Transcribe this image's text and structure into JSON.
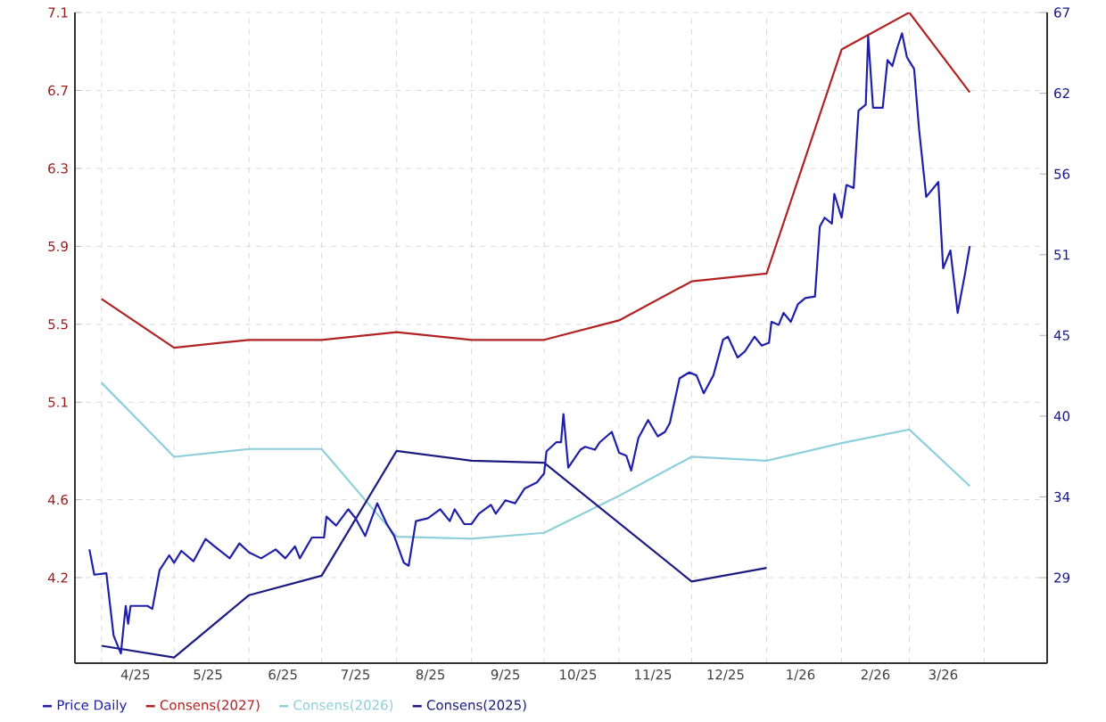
{
  "chart_data": {
    "type": "line",
    "grid": true,
    "legend": "bottom",
    "xlim": [
      "2025-03-21",
      "2026-04-27"
    ],
    "xticks": [
      {
        "value": "2025-04-01",
        "label": null
      },
      {
        "value": "2025-05-01",
        "label": null
      },
      {
        "value": "2025-06-01",
        "label": null
      },
      {
        "value": "2025-07-01",
        "label": null
      },
      {
        "value": "2025-08-01",
        "label": null
      },
      {
        "value": "2025-09-01",
        "label": null
      },
      {
        "value": "2025-10-01",
        "label": null
      },
      {
        "value": "2025-11-01",
        "label": null
      },
      {
        "value": "2025-12-01",
        "label": null
      },
      {
        "value": "2026-01-01",
        "label": null
      },
      {
        "value": "2026-02-01",
        "label": null
      },
      {
        "value": "2026-03-01",
        "label": null
      },
      {
        "value": "2026-04-01",
        "label": null
      },
      {
        "value": "2025-04-15",
        "label": "4/25"
      },
      {
        "value": "2025-05-15",
        "label": "5/25"
      },
      {
        "value": "2025-06-15",
        "label": "6/25"
      },
      {
        "value": "2025-07-15",
        "label": "7/25"
      },
      {
        "value": "2025-08-15",
        "label": "8/25"
      },
      {
        "value": "2025-09-15",
        "label": "9/25"
      },
      {
        "value": "2025-10-15",
        "label": "10/25"
      },
      {
        "value": "2025-11-15",
        "label": "11/25"
      },
      {
        "value": "2025-12-15",
        "label": "12/25"
      },
      {
        "value": "2026-01-15",
        "label": "1/26"
      },
      {
        "value": "2026-02-15",
        "label": "2/26"
      },
      {
        "value": "2026-03-15",
        "label": "3/26"
      }
    ],
    "ylim": [
      3.761,
      7.1
    ],
    "yticks": [
      7.1,
      6.7,
      6.3,
      5.9,
      5.5,
      5.1,
      4.6,
      4.2
    ],
    "y2lim": [
      23.25,
      67
    ],
    "y2ticks": [
      67,
      {
        "value": 61.57,
        "label": "62"
      },
      {
        "value": 56.14,
        "label": "56"
      },
      {
        "value": 50.71,
        "label": "51"
      },
      {
        "value": 45.29,
        "label": "45"
      },
      {
        "value": 39.86,
        "label": "40"
      },
      {
        "value": 34.43,
        "label": "34"
      },
      29
    ],
    "series": [
      {
        "name": "Price Daily",
        "color": "#1f1faa",
        "axis": "y2",
        "x": [
          "2025-03-27",
          "2025-03-29",
          "2025-04-03",
          "2025-04-06",
          "2025-04-09",
          "2025-04-11",
          "2025-04-12",
          "2025-04-13",
          "2025-04-20",
          "2025-04-22",
          "2025-04-25",
          "2025-04-29",
          "2025-05-01",
          "2025-05-04",
          "2025-05-09",
          "2025-05-14",
          "2025-05-17",
          "2025-05-24",
          "2025-05-28",
          "2025-06-01",
          "2025-06-06",
          "2025-06-12",
          "2025-06-16",
          "2025-06-20",
          "2025-06-22",
          "2025-06-27",
          "2025-07-02",
          "2025-07-03",
          "2025-07-07",
          "2025-07-12",
          "2025-07-15",
          "2025-07-19",
          "2025-07-24",
          "2025-07-28",
          "2025-07-31",
          "2025-08-04",
          "2025-08-06",
          "2025-08-09",
          "2025-08-14",
          "2025-08-19",
          "2025-08-23",
          "2025-08-25",
          "2025-08-29",
          "2025-09-01",
          "2025-09-04",
          "2025-09-09",
          "2025-09-11",
          "2025-09-15",
          "2025-09-19",
          "2025-09-23",
          "2025-09-28",
          "2025-10-01",
          "2025-10-02",
          "2025-10-06",
          "2025-10-08",
          "2025-10-09",
          "2025-10-11",
          "2025-10-16",
          "2025-10-18",
          "2025-10-22",
          "2025-10-24",
          "2025-10-29",
          "2025-11-01",
          "2025-11-04",
          "2025-11-06",
          "2025-11-09",
          "2025-11-13",
          "2025-11-17",
          "2025-11-20",
          "2025-11-22",
          "2025-11-26",
          "2025-11-30",
          "2025-12-03",
          "2025-12-06",
          "2025-12-10",
          "2025-12-14",
          "2025-12-16",
          "2025-12-20",
          "2025-12-23",
          "2025-12-27",
          "2025-12-30",
          "2026-01-02",
          "2026-01-03",
          "2026-01-06",
          "2026-01-08",
          "2026-01-11",
          "2026-01-14",
          "2026-01-17",
          "2026-01-21",
          "2026-01-23",
          "2026-01-25",
          "2026-01-28",
          "2026-01-29",
          "2026-02-01",
          "2026-02-03",
          "2026-02-06",
          "2026-02-08",
          "2026-02-11",
          "2026-02-12",
          "2026-02-14",
          "2026-02-18",
          "2026-02-20",
          "2026-02-22",
          "2026-02-24",
          "2026-02-26",
          "2026-02-28",
          "2026-03-03",
          "2026-03-05",
          "2026-03-08",
          "2026-03-10",
          "2026-03-13",
          "2026-03-15",
          "2026-03-18",
          "2026-03-21",
          "2026-03-24",
          "2026-03-26"
        ],
        "values": [
          30.9,
          29.2,
          29.3,
          25.1,
          23.9,
          27.1,
          25.9,
          27.1,
          27.1,
          26.9,
          29.5,
          30.5,
          30.0,
          30.8,
          30.1,
          31.6,
          31.2,
          30.3,
          31.3,
          30.7,
          30.3,
          30.9,
          30.3,
          31.1,
          30.3,
          31.7,
          31.7,
          33.1,
          32.5,
          33.6,
          33.0,
          31.8,
          34.0,
          32.6,
          31.8,
          30.0,
          29.8,
          32.8,
          33.0,
          33.6,
          32.8,
          33.6,
          32.6,
          32.6,
          33.3,
          33.9,
          33.3,
          34.2,
          34.0,
          35.0,
          35.4,
          36.0,
          37.5,
          38.1,
          38.1,
          40.0,
          36.4,
          37.6,
          37.8,
          37.6,
          38.1,
          38.8,
          37.4,
          37.2,
          36.2,
          38.4,
          39.6,
          38.5,
          38.8,
          39.4,
          42.4,
          42.8,
          42.6,
          41.4,
          42.6,
          45.0,
          45.2,
          43.8,
          44.2,
          45.2,
          44.6,
          44.8,
          46.2,
          46.0,
          46.8,
          46.2,
          47.4,
          47.8,
          47.9,
          52.6,
          53.2,
          52.8,
          54.8,
          53.2,
          55.4,
          55.2,
          60.4,
          60.8,
          65.4,
          60.6,
          60.6,
          63.8,
          63.4,
          64.6,
          65.6,
          64.0,
          63.2,
          59.2,
          54.6,
          55.0,
          55.6,
          49.8,
          51.0,
          46.8,
          49.4,
          51.3
        ]
      },
      {
        "name": "Consens(2027)",
        "color": "#b22222",
        "x": [
          "2025-04-01",
          "2025-05-01",
          "2025-06-01",
          "2025-07-01",
          "2025-08-01",
          "2025-09-01",
          "2025-10-01",
          "2025-11-01",
          "2025-12-01",
          "2026-01-01",
          "2026-02-01",
          "2026-03-01",
          "2026-03-26"
        ],
        "values": [
          5.63,
          5.38,
          5.42,
          5.42,
          5.46,
          5.42,
          5.42,
          5.52,
          5.72,
          5.76,
          6.91,
          7.1,
          6.69
        ]
      },
      {
        "name": "Consens(2026)",
        "color": "#8fcfdc",
        "x": [
          "2025-04-01",
          "2025-05-01",
          "2025-06-01",
          "2025-07-01",
          "2025-08-01",
          "2025-09-01",
          "2025-10-01",
          "2025-11-01",
          "2025-12-01",
          "2026-01-01",
          "2026-02-01",
          "2026-03-01",
          "2026-03-26"
        ],
        "values": [
          5.2,
          4.82,
          4.86,
          4.86,
          4.41,
          4.4,
          4.43,
          4.62,
          4.82,
          4.8,
          4.89,
          4.96,
          4.67
        ]
      },
      {
        "name": "Consens(2025)",
        "color": "#1c1c80",
        "x": [
          "2025-04-01",
          "2025-05-01",
          "2025-06-01",
          "2025-07-01",
          "2025-08-01",
          "2025-09-01",
          "2025-10-01",
          "2025-12-01",
          "2026-01-01"
        ],
        "values": [
          3.85,
          3.79,
          4.11,
          4.21,
          4.85,
          4.8,
          4.79,
          4.18,
          4.25
        ]
      }
    ]
  }
}
